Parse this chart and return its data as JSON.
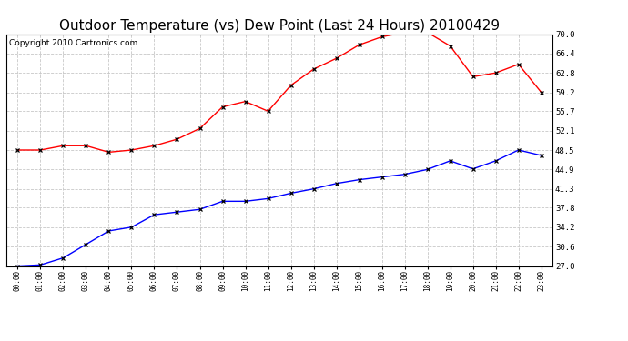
{
  "title": "Outdoor Temperature (vs) Dew Point (Last 24 Hours) 20100429",
  "copyright": "Copyright 2010 Cartronics.com",
  "hours": [
    "00:00",
    "01:00",
    "02:00",
    "03:00",
    "04:00",
    "05:00",
    "06:00",
    "07:00",
    "08:00",
    "09:00",
    "10:00",
    "11:00",
    "12:00",
    "13:00",
    "14:00",
    "15:00",
    "16:00",
    "17:00",
    "18:00",
    "19:00",
    "20:00",
    "21:00",
    "22:00",
    "23:00"
  ],
  "temp_red": [
    48.5,
    48.5,
    49.3,
    49.3,
    48.1,
    48.5,
    49.3,
    50.5,
    52.5,
    56.5,
    57.5,
    55.7,
    60.5,
    63.5,
    65.5,
    68.0,
    69.5,
    70.3,
    70.3,
    67.8,
    62.1,
    62.8,
    64.4,
    59.2
  ],
  "dew_blue": [
    27.0,
    27.2,
    28.5,
    31.0,
    33.5,
    34.2,
    36.5,
    37.0,
    37.5,
    39.0,
    39.0,
    39.5,
    40.5,
    41.3,
    42.3,
    43.0,
    43.5,
    44.0,
    44.9,
    46.5,
    45.0,
    46.5,
    48.5,
    47.5
  ],
  "ylim": [
    27.0,
    70.0
  ],
  "yticks": [
    27.0,
    30.6,
    34.2,
    37.8,
    41.3,
    44.9,
    48.5,
    52.1,
    55.7,
    59.2,
    62.8,
    66.4,
    70.0
  ],
  "bg_color": "#ffffff",
  "grid_color": "#c8c8c8",
  "red_color": "#ff0000",
  "blue_color": "#0000ff",
  "title_fontsize": 11,
  "copyright_fontsize": 6.5
}
